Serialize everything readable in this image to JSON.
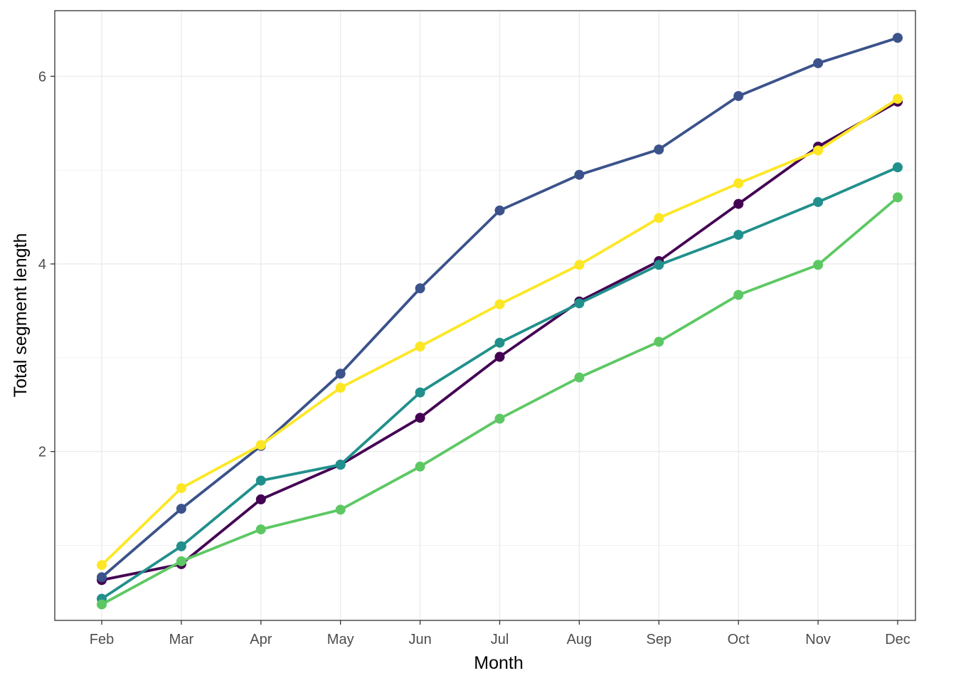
{
  "chart_data": {
    "type": "line",
    "title": "",
    "xlabel": "Month",
    "ylabel": "Total segment length",
    "categories": [
      "Feb",
      "Mar",
      "Apr",
      "May",
      "Jun",
      "Jul",
      "Aug",
      "Sep",
      "Oct",
      "Nov",
      "Dec"
    ],
    "yticks": [
      2,
      4,
      6
    ],
    "ylim": [
      0.2,
      6.7
    ],
    "grid": true,
    "legend": "none",
    "series": [
      {
        "color": "#440154",
        "values": [
          0.63,
          0.8,
          1.49,
          1.86,
          2.36,
          3.01,
          3.6,
          4.03,
          4.64,
          5.25,
          5.73
        ]
      },
      {
        "color": "#3B528B",
        "values": [
          0.66,
          1.39,
          2.06,
          2.83,
          3.74,
          4.57,
          4.95,
          5.22,
          5.79,
          6.14,
          6.41
        ]
      },
      {
        "color": "#21908C",
        "values": [
          0.43,
          0.99,
          1.69,
          1.86,
          2.63,
          3.16,
          3.58,
          3.99,
          4.31,
          4.66,
          5.03
        ]
      },
      {
        "color": "#5DC863",
        "values": [
          0.37,
          0.83,
          1.17,
          1.38,
          1.84,
          2.35,
          2.79,
          3.17,
          3.67,
          3.99,
          4.71
        ]
      },
      {
        "color": "#FDE725",
        "values": [
          0.79,
          1.61,
          2.07,
          2.68,
          3.12,
          3.57,
          3.99,
          4.49,
          4.86,
          5.21,
          5.76
        ]
      }
    ]
  }
}
